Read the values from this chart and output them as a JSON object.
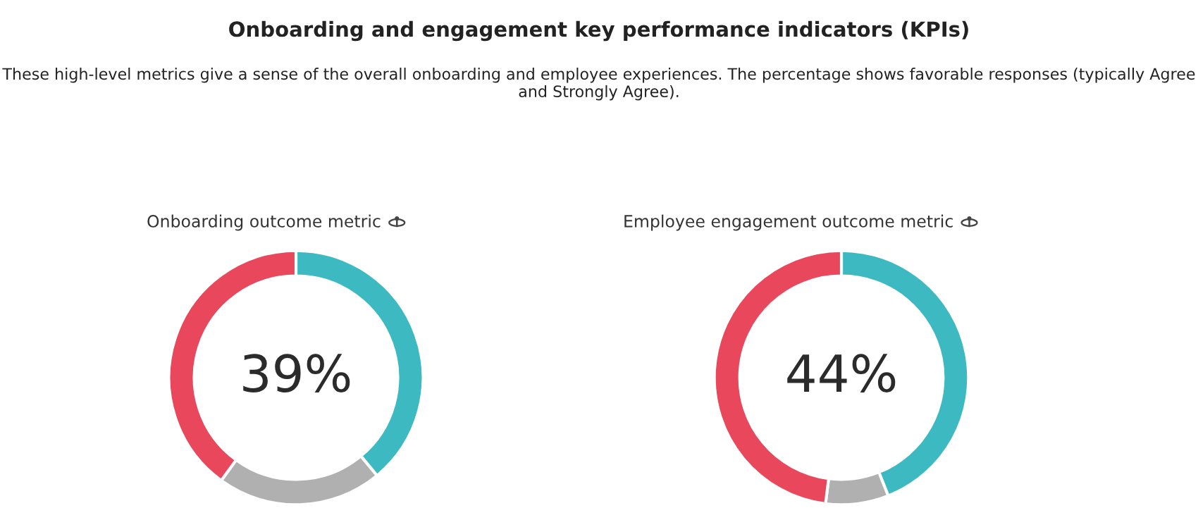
{
  "chart_data": [
    {
      "type": "other",
      "title": "Onboarding and engagement key performance indicators (KPIs)",
      "subtitle": "These high-level metrics give a sense of the overall onboarding and employee experiences. The percentage shows favorable responses (typically Agree and Strongly Agree)."
    },
    {
      "type": "donut",
      "title": "Onboarding outcome metric",
      "categories": [
        null,
        null,
        null
      ],
      "values": [
        39,
        21,
        40
      ],
      "colors": [
        "#3cb9c1",
        "#b0b0b0",
        "#e8475c"
      ],
      "value_labels": [
        "39%",
        null,
        null
      ]
    },
    {
      "type": "donut",
      "title": "Employee engagement outcome metric",
      "categories": [
        null,
        null,
        null
      ],
      "values": [
        44,
        8,
        48
      ],
      "colors": [
        "#3cb9c1",
        "#b0b0b0",
        "#e8475c"
      ],
      "value_labels": [
        "44%",
        null,
        null
      ]
    }
  ]
}
